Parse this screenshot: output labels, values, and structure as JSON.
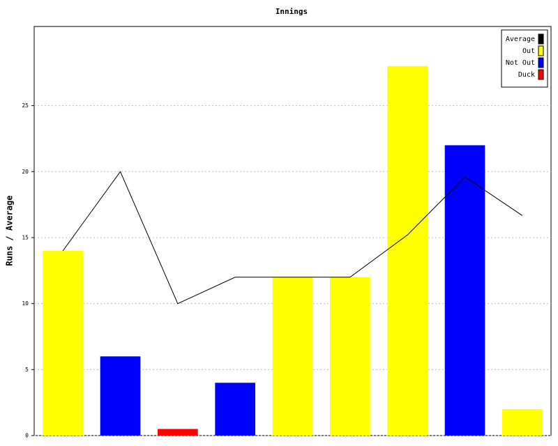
{
  "chart_data": {
    "type": "bar",
    "title": "Innings",
    "y_label": "Runs / Average",
    "categories": [
      null,
      null,
      null,
      null,
      null,
      null,
      null,
      null,
      null
    ],
    "series": [
      {
        "name": "Average",
        "type": "line",
        "color": "#000000",
        "values": [
          14,
          20,
          10,
          12,
          12,
          12,
          15.2,
          19.6,
          16.67
        ]
      },
      {
        "name": "Out",
        "type": "bar",
        "color": "#ffff00",
        "values": [
          14,
          null,
          null,
          null,
          12,
          12,
          28,
          null,
          2
        ]
      },
      {
        "name": "Not Out",
        "type": "bar",
        "color": "#0000ff",
        "values": [
          null,
          6,
          null,
          4,
          null,
          null,
          null,
          22,
          null
        ]
      },
      {
        "name": "Duck",
        "type": "bar",
        "color": "#ff0000",
        "values": [
          null,
          null,
          0.5,
          null,
          null,
          null,
          null,
          null,
          null
        ]
      }
    ],
    "ylim": [
      0,
      31
    ],
    "yticks": [
      0,
      5,
      10,
      15,
      20,
      25
    ],
    "grid": true,
    "legend": "top-right"
  }
}
